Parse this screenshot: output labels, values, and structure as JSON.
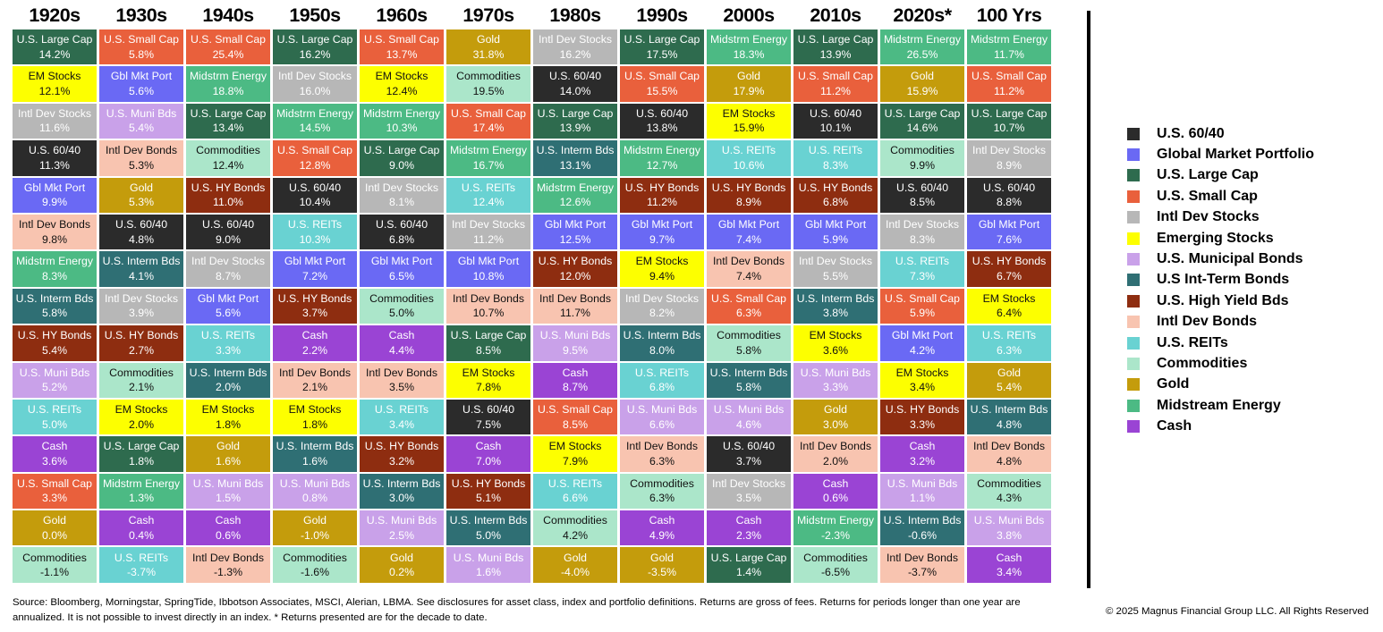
{
  "chart_data": {
    "type": "table",
    "description": "Asset class returns by decade (periodic-table style ranking chart)",
    "legend_position": "right",
    "assets": {
      "us6040": {
        "label": "U.S. 60/40",
        "color": "#2b2b2b",
        "text": "#ffffff"
      },
      "gmp": {
        "label": "Gbl Mkt Port",
        "color": "#6a69f4",
        "text": "#ffffff"
      },
      "largecap": {
        "label": "U.S. Large Cap",
        "color": "#2e6b4e",
        "text": "#ffffff"
      },
      "smallcap": {
        "label": "U.S. Small Cap",
        "color": "#e9603c",
        "text": "#ffffff"
      },
      "intlstk": {
        "label": "Intl Dev Stocks",
        "color": "#b7b7b7",
        "text": "#ffffff"
      },
      "em": {
        "label": "EM Stocks",
        "color": "#fdff00",
        "text": "#111111"
      },
      "muni": {
        "label": "U.S. Muni Bds",
        "color": "#c9a1e9",
        "text": "#ffffff"
      },
      "interm": {
        "label": "U.S. Interm Bds",
        "color": "#2f6f74",
        "text": "#ffffff"
      },
      "hy": {
        "label": "U.S. HY Bonds",
        "color": "#8e2d10",
        "text": "#ffffff"
      },
      "intlbd": {
        "label": "Intl Dev Bonds",
        "color": "#f8c4b0",
        "text": "#111111"
      },
      "reits": {
        "label": "U.S. REITs",
        "color": "#69d2d2",
        "text": "#ffffff"
      },
      "comm": {
        "label": "Commodities",
        "color": "#abe6ca",
        "text": "#111111"
      },
      "gold": {
        "label": "Gold",
        "color": "#c49c0c",
        "text": "#ffffff"
      },
      "energy": {
        "label": "Midstrm Energy",
        "color": "#4cba84",
        "text": "#ffffff"
      },
      "cash": {
        "label": "Cash",
        "color": "#9a44d4",
        "text": "#ffffff"
      }
    },
    "columns": [
      {
        "label": "1920s",
        "cells": [
          [
            "largecap",
            14.2
          ],
          [
            "em",
            12.1
          ],
          [
            "intlstk",
            11.6
          ],
          [
            "us6040",
            11.3
          ],
          [
            "gmp",
            9.9
          ],
          [
            "intlbd",
            9.8
          ],
          [
            "energy",
            8.3
          ],
          [
            "interm",
            5.8
          ],
          [
            "hy",
            5.4
          ],
          [
            "muni",
            5.2
          ],
          [
            "reits",
            5.0
          ],
          [
            "cash",
            3.6
          ],
          [
            "smallcap",
            3.3
          ],
          [
            "gold",
            0.0
          ],
          [
            "comm",
            -1.1
          ]
        ]
      },
      {
        "label": "1930s",
        "cells": [
          [
            "smallcap",
            5.8
          ],
          [
            "gmp",
            5.6
          ],
          [
            "muni",
            5.4
          ],
          [
            "intlbd",
            5.3
          ],
          [
            "gold",
            5.3
          ],
          [
            "us6040",
            4.8
          ],
          [
            "interm",
            4.1
          ],
          [
            "intlstk",
            3.9
          ],
          [
            "hy",
            2.7
          ],
          [
            "comm",
            2.1
          ],
          [
            "em",
            2.0
          ],
          [
            "largecap",
            1.8
          ],
          [
            "energy",
            1.3
          ],
          [
            "cash",
            0.4
          ],
          [
            "reits",
            -3.7
          ]
        ]
      },
      {
        "label": "1940s",
        "cells": [
          [
            "smallcap",
            25.4
          ],
          [
            "energy",
            18.8
          ],
          [
            "largecap",
            13.4
          ],
          [
            "comm",
            12.4
          ],
          [
            "hy",
            11.0
          ],
          [
            "us6040",
            9.0
          ],
          [
            "intlstk",
            8.7
          ],
          [
            "gmp",
            5.6
          ],
          [
            "reits",
            3.3
          ],
          [
            "interm",
            2.0
          ],
          [
            "em",
            1.8
          ],
          [
            "gold",
            1.6
          ],
          [
            "muni",
            1.5
          ],
          [
            "cash",
            0.6
          ],
          [
            "intlbd",
            -1.3
          ]
        ]
      },
      {
        "label": "1950s",
        "cells": [
          [
            "largecap",
            16.2
          ],
          [
            "intlstk",
            16.0
          ],
          [
            "energy",
            14.5
          ],
          [
            "smallcap",
            12.8
          ],
          [
            "us6040",
            10.4
          ],
          [
            "reits",
            10.3
          ],
          [
            "gmp",
            7.2
          ],
          [
            "hy",
            3.7
          ],
          [
            "cash",
            2.2
          ],
          [
            "intlbd",
            2.1
          ],
          [
            "em",
            1.8
          ],
          [
            "interm",
            1.6
          ],
          [
            "muni",
            0.8
          ],
          [
            "gold",
            -1.0
          ],
          [
            "comm",
            -1.6
          ]
        ]
      },
      {
        "label": "1960s",
        "cells": [
          [
            "smallcap",
            13.7
          ],
          [
            "em",
            12.4
          ],
          [
            "energy",
            10.3
          ],
          [
            "largecap",
            9.0
          ],
          [
            "intlstk",
            8.1
          ],
          [
            "us6040",
            6.8
          ],
          [
            "gmp",
            6.5
          ],
          [
            "comm",
            5.0
          ],
          [
            "cash",
            4.4
          ],
          [
            "intlbd",
            3.5
          ],
          [
            "reits",
            3.4
          ],
          [
            "hy",
            3.2
          ],
          [
            "interm",
            3.0
          ],
          [
            "muni",
            2.5
          ],
          [
            "gold",
            0.2
          ]
        ]
      },
      {
        "label": "1970s",
        "cells": [
          [
            "gold",
            31.8
          ],
          [
            "comm",
            19.5
          ],
          [
            "smallcap",
            17.4
          ],
          [
            "energy",
            16.7
          ],
          [
            "reits",
            12.4
          ],
          [
            "intlstk",
            11.2
          ],
          [
            "gmp",
            10.8
          ],
          [
            "intlbd",
            10.7
          ],
          [
            "largecap",
            8.5
          ],
          [
            "em",
            7.8
          ],
          [
            "us6040",
            7.5
          ],
          [
            "cash",
            7.0
          ],
          [
            "hy",
            5.1
          ],
          [
            "interm",
            5.0
          ],
          [
            "muni",
            1.6
          ]
        ]
      },
      {
        "label": "1980s",
        "cells": [
          [
            "intlstk",
            16.2
          ],
          [
            "us6040",
            14.0
          ],
          [
            "largecap",
            13.9
          ],
          [
            "interm",
            13.1
          ],
          [
            "energy",
            12.6
          ],
          [
            "gmp",
            12.5
          ],
          [
            "hy",
            12.0
          ],
          [
            "intlbd",
            11.7
          ],
          [
            "muni",
            9.5
          ],
          [
            "cash",
            8.7
          ],
          [
            "smallcap",
            8.5
          ],
          [
            "em",
            7.9
          ],
          [
            "reits",
            6.6
          ],
          [
            "comm",
            4.2
          ],
          [
            "gold",
            -4.0
          ]
        ]
      },
      {
        "label": "1990s",
        "cells": [
          [
            "largecap",
            17.5
          ],
          [
            "smallcap",
            15.5
          ],
          [
            "us6040",
            13.8
          ],
          [
            "energy",
            12.7
          ],
          [
            "hy",
            11.2
          ],
          [
            "gmp",
            9.7
          ],
          [
            "em",
            9.4
          ],
          [
            "intlstk",
            8.2
          ],
          [
            "interm",
            8.0
          ],
          [
            "reits",
            6.8
          ],
          [
            "muni",
            6.6
          ],
          [
            "intlbd",
            6.3
          ],
          [
            "comm",
            6.3
          ],
          [
            "cash",
            4.9
          ],
          [
            "gold",
            -3.5
          ]
        ]
      },
      {
        "label": "2000s",
        "cells": [
          [
            "energy",
            18.3
          ],
          [
            "gold",
            17.9
          ],
          [
            "em",
            15.9
          ],
          [
            "reits",
            10.6
          ],
          [
            "hy",
            8.9
          ],
          [
            "gmp",
            7.4
          ],
          [
            "intlbd",
            7.4
          ],
          [
            "smallcap",
            6.3
          ],
          [
            "comm",
            5.8
          ],
          [
            "interm",
            5.8
          ],
          [
            "muni",
            4.6
          ],
          [
            "us6040",
            3.7
          ],
          [
            "intlstk",
            3.5
          ],
          [
            "cash",
            2.3
          ],
          [
            "largecap",
            1.4
          ]
        ]
      },
      {
        "label": "2010s",
        "cells": [
          [
            "largecap",
            13.9
          ],
          [
            "smallcap",
            11.2
          ],
          [
            "us6040",
            10.1
          ],
          [
            "reits",
            8.3
          ],
          [
            "hy",
            6.8
          ],
          [
            "gmp",
            5.9
          ],
          [
            "intlstk",
            5.5
          ],
          [
            "interm",
            3.8
          ],
          [
            "em",
            3.6
          ],
          [
            "muni",
            3.3
          ],
          [
            "gold",
            3.0
          ],
          [
            "intlbd",
            2.0
          ],
          [
            "cash",
            0.6
          ],
          [
            "energy",
            -2.3
          ],
          [
            "comm",
            -6.5
          ]
        ]
      },
      {
        "label": "2020s*",
        "cells": [
          [
            "energy",
            26.5
          ],
          [
            "gold",
            15.9
          ],
          [
            "largecap",
            14.6
          ],
          [
            "comm",
            9.9
          ],
          [
            "us6040",
            8.5
          ],
          [
            "intlstk",
            8.3
          ],
          [
            "reits",
            7.3
          ],
          [
            "smallcap",
            5.9
          ],
          [
            "gmp",
            4.2
          ],
          [
            "em",
            3.4
          ],
          [
            "hy",
            3.3
          ],
          [
            "cash",
            3.2
          ],
          [
            "muni",
            1.1
          ],
          [
            "interm",
            -0.6
          ],
          [
            "intlbd",
            -3.7
          ]
        ]
      },
      {
        "label": "100 Yrs",
        "cells": [
          [
            "energy",
            11.7
          ],
          [
            "smallcap",
            11.2
          ],
          [
            "largecap",
            10.7
          ],
          [
            "intlstk",
            8.9
          ],
          [
            "us6040",
            8.8
          ],
          [
            "gmp",
            7.6
          ],
          [
            "hy",
            6.7
          ],
          [
            "em",
            6.4
          ],
          [
            "reits",
            6.3
          ],
          [
            "gold",
            5.4
          ],
          [
            "interm",
            4.8
          ],
          [
            "intlbd",
            4.8
          ],
          [
            "comm",
            4.3
          ],
          [
            "muni",
            3.8
          ],
          [
            "cash",
            3.4
          ]
        ]
      }
    ],
    "legend": [
      {
        "asset": "us6040",
        "label": "U.S. 60/40"
      },
      {
        "asset": "gmp",
        "label": "Global Market Portfolio"
      },
      {
        "asset": "largecap",
        "label": "U.S. Large Cap"
      },
      {
        "asset": "smallcap",
        "label": "U.S. Small Cap"
      },
      {
        "asset": "intlstk",
        "label": "Intl Dev Stocks"
      },
      {
        "asset": "em",
        "label": "Emerging Stocks"
      },
      {
        "asset": "muni",
        "label": "U.S. Municipal Bonds"
      },
      {
        "asset": "interm",
        "label": "U.S Int-Term Bonds"
      },
      {
        "asset": "hy",
        "label": "U.S. High Yield Bds"
      },
      {
        "asset": "intlbd",
        "label": "Intl Dev Bonds"
      },
      {
        "asset": "reits",
        "label": "U.S. REITs"
      },
      {
        "asset": "comm",
        "label": "Commodities"
      },
      {
        "asset": "gold",
        "label": "Gold"
      },
      {
        "asset": "energy",
        "label": "Midstream Energy"
      },
      {
        "asset": "cash",
        "label": "Cash"
      }
    ]
  },
  "footer": {
    "line1": "Source: Bloomberg, Morningstar, SpringTide, Ibbotson Associates, MSCI, Alerian, LBMA. See disclosures for asset class, index and portfolio definitions. Returns are gross of fees. Returns for periods longer than one year are",
    "line2": "annualized. It is not possible to invest directly in an index. * Returns presented are for the decade to date."
  },
  "copyright": "© 2025 Magnus Financial Group LLC. All Rights Reserved"
}
